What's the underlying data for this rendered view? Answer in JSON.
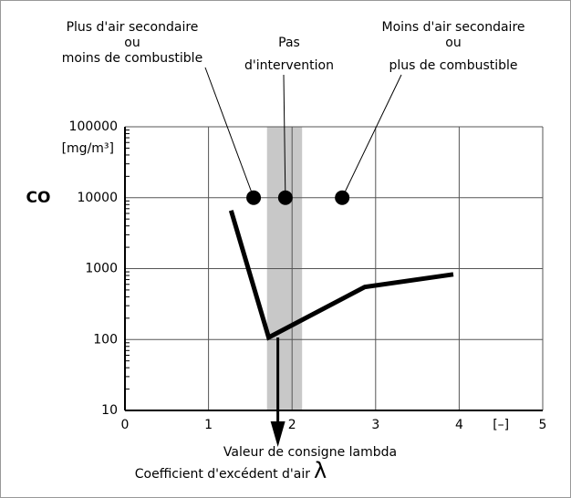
{
  "chart_data": {
    "type": "line",
    "y_label": "CO",
    "y_unit": "[mg/m³]",
    "x_unit": "[–]",
    "x_label_lines": [
      "Valeur de consigne lambda",
      "Coefficient d'excédent d'air"
    ],
    "x_symbol": "λ",
    "log_y": true,
    "grid": true,
    "xlim": [
      0,
      5
    ],
    "xticks": [
      0,
      1,
      2,
      3,
      4,
      5
    ],
    "ylim": [
      10,
      100000
    ],
    "yticks": [
      10,
      100,
      1000,
      10000,
      100000
    ],
    "series": [
      {
        "color": "#000000",
        "x": [
          1.27,
          1.72,
          2.87,
          3.93
        ],
        "values": [
          6600,
          107,
          550,
          830
        ]
      }
    ],
    "band": {
      "color": "#c8c8c8",
      "x": [
        1.7,
        2.12
      ]
    },
    "setpoint_x": 1.83,
    "markers": {
      "color": "#000000",
      "x": [
        1.54,
        1.92,
        2.6
      ],
      "y": [
        10000,
        10000,
        10000
      ]
    },
    "annotations": [
      [
        "Plus d'air secondaire",
        "ou",
        "moins de combustible"
      ],
      [
        "Pas",
        "d'intervention"
      ],
      [
        "Moins d'air secondaire",
        "ou",
        "plus de combustible"
      ]
    ]
  }
}
